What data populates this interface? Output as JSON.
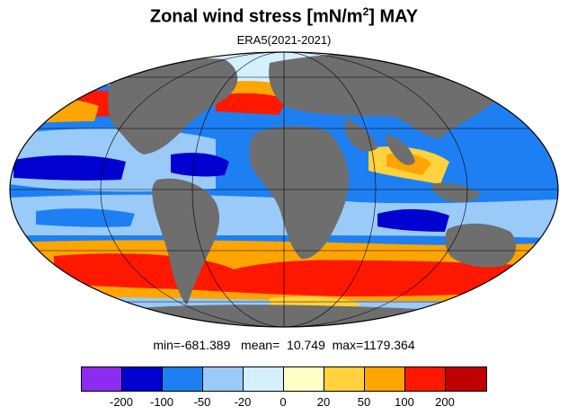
{
  "title": "Zonal wind stress [mN/m",
  "title_sup": "2",
  "title_end": "] MAY",
  "subtitle": "ERA5(2021-2021)",
  "stats": {
    "min_label": "min=",
    "min": "-681.389",
    "mean_label": "mean=",
    "mean": "10.749",
    "max_label": "max=",
    "max": "1179.364"
  },
  "colorbar": {
    "colors": [
      "#8b2cf0",
      "#0000d0",
      "#1e7ff2",
      "#99caf8",
      "#d4f0ff",
      "#ffffc6",
      "#ffd23e",
      "#ffa500",
      "#ff1800",
      "#c00000"
    ],
    "labels": [
      "-200",
      "-100",
      "-50",
      "-20",
      "0",
      "20",
      "50",
      "100",
      "200"
    ]
  },
  "map": {
    "projection": "mollweide",
    "land_color": "#6e6e6e",
    "ocean_fill_default": "#1e7ff2"
  }
}
